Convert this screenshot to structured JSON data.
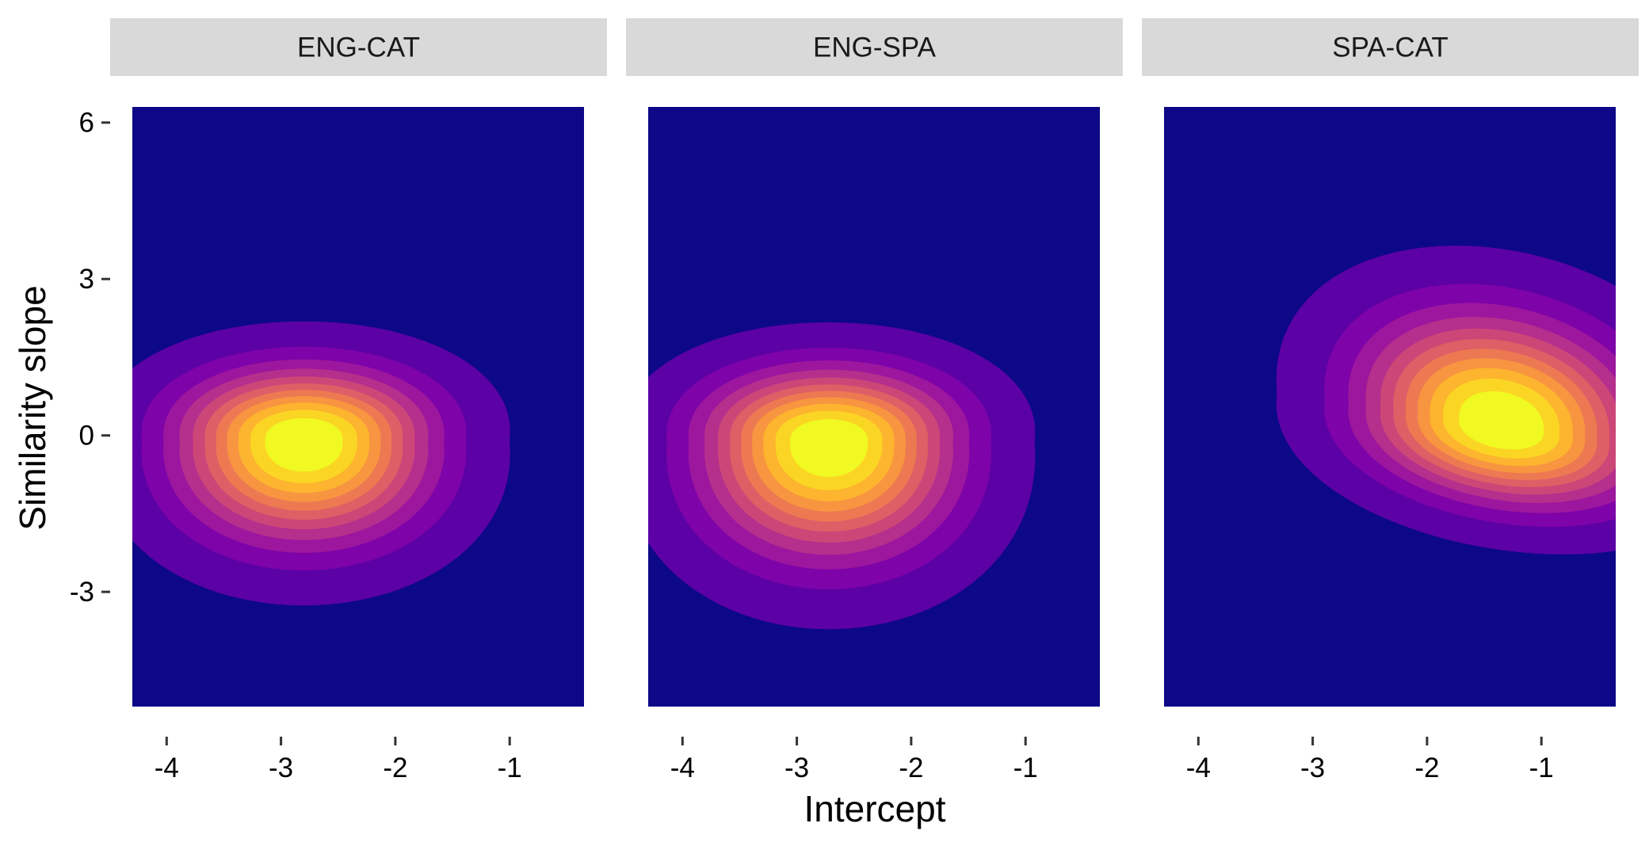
{
  "chart_data": {
    "type": "heatmap",
    "subtype": "filled-density-contour",
    "xlabel": "Intercept",
    "ylabel": "Similarity slope",
    "xlim": [
      -4.3,
      -0.35
    ],
    "ylim": [
      -5.2,
      6.3
    ],
    "x_ticks": [
      -4,
      -3,
      -2,
      -1
    ],
    "y_ticks": [
      -3,
      0,
      3,
      6
    ],
    "grid": false,
    "legend": "none",
    "colors": {
      "background": "#0d0887",
      "strip_fill": "#d9d9d9",
      "palette": [
        "#0d0887",
        "#5c01a6",
        "#7e03a8",
        "#9c179e",
        "#b52f8c",
        "#cc4778",
        "#de5f65",
        "#ed7953",
        "#f89540",
        "#fdb42f",
        "#fbd524",
        "#f0f921"
      ]
    },
    "panels": [
      {
        "name": "ENG-CAT",
        "peak_intercept": -2.8,
        "peak_slope": -0.1,
        "spread_intercept": 0.33,
        "spread_slope_above": 0.42,
        "spread_slope_below": 0.58,
        "skew": 0.0
      },
      {
        "name": "ENG-SPA",
        "peak_intercept": -2.72,
        "peak_slope": -0.12,
        "spread_intercept": 0.33,
        "spread_slope_above": 0.42,
        "spread_slope_below": 0.66,
        "skew": 0.0
      },
      {
        "name": "SPA-CAT",
        "peak_intercept": -1.35,
        "peak_slope": 0.2,
        "spread_intercept": 0.36,
        "spread_slope_above": 0.62,
        "spread_slope_below": 0.44,
        "skew": -0.55
      }
    ]
  }
}
